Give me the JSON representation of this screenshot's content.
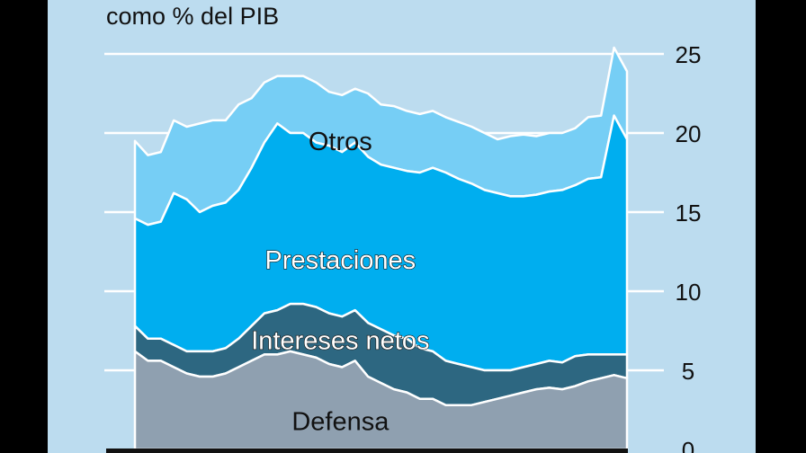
{
  "chart_data": {
    "type": "area",
    "subtitle": "como % del PIB",
    "y_ticks": [
      "0",
      "5",
      "10",
      "15",
      "20",
      "25"
    ],
    "ylim": [
      0,
      25
    ],
    "grid": true,
    "legend": "inline labels",
    "x_index_range": [
      0,
      38
    ],
    "series": [
      {
        "name": "Defensa",
        "color": "#8fa0b0",
        "label_anchor": [
          11,
          1.8
        ],
        "values": [
          6.2,
          5.6,
          5.6,
          5.2,
          4.8,
          4.6,
          4.6,
          4.8,
          5.2,
          5.6,
          6.0,
          6.0,
          6.2,
          6.0,
          5.8,
          5.4,
          5.2,
          5.6,
          4.6,
          4.2,
          3.8,
          3.6,
          3.2,
          3.2,
          2.8,
          2.8,
          2.8,
          3.0,
          3.2,
          3.4,
          3.6,
          3.8,
          3.9,
          3.8,
          4.0,
          4.3,
          4.5,
          4.7,
          4.5
        ]
      },
      {
        "name": "Intereses netos",
        "color": "#2d6781",
        "label_anchor": [
          11,
          6.9
        ],
        "values": [
          1.6,
          1.4,
          1.4,
          1.4,
          1.4,
          1.6,
          1.6,
          1.6,
          1.8,
          2.2,
          2.6,
          2.8,
          3.0,
          3.2,
          3.2,
          3.2,
          3.2,
          3.2,
          3.4,
          3.4,
          3.4,
          3.4,
          3.2,
          3.0,
          2.8,
          2.6,
          2.4,
          2.0,
          1.8,
          1.6,
          1.6,
          1.6,
          1.7,
          1.7,
          1.9,
          1.7,
          1.5,
          1.3,
          1.5
        ]
      },
      {
        "name": "Prestaciones",
        "color": "#00aeef",
        "label_anchor": [
          11,
          12.0
        ],
        "values": [
          6.8,
          7.2,
          7.4,
          9.6,
          9.6,
          8.8,
          9.2,
          9.2,
          9.4,
          10.0,
          10.8,
          11.8,
          10.8,
          10.8,
          10.4,
          10.6,
          10.4,
          10.6,
          10.5,
          10.4,
          10.6,
          10.6,
          11.1,
          11.6,
          11.9,
          11.7,
          11.6,
          11.4,
          11.2,
          11.0,
          10.8,
          10.7,
          10.7,
          10.9,
          10.8,
          11.1,
          11.2,
          15.1,
          13.6
        ]
      },
      {
        "name": "Otros",
        "color": "#76cef5",
        "label_anchor": [
          11,
          19.5
        ],
        "values": [
          4.9,
          4.4,
          4.4,
          4.6,
          4.6,
          5.6,
          5.4,
          5.2,
          5.4,
          4.4,
          3.8,
          3.0,
          3.6,
          3.6,
          3.8,
          3.4,
          3.6,
          3.4,
          4.0,
          3.8,
          3.9,
          3.8,
          3.7,
          3.6,
          3.5,
          3.6,
          3.6,
          3.6,
          3.4,
          3.8,
          3.9,
          3.7,
          3.7,
          3.6,
          3.6,
          3.9,
          3.9,
          4.3,
          4.3
        ]
      }
    ]
  },
  "colors": {
    "background": "#bcdcef",
    "frame": "#000000",
    "gridline": "#ffffff",
    "text": "#111111"
  }
}
